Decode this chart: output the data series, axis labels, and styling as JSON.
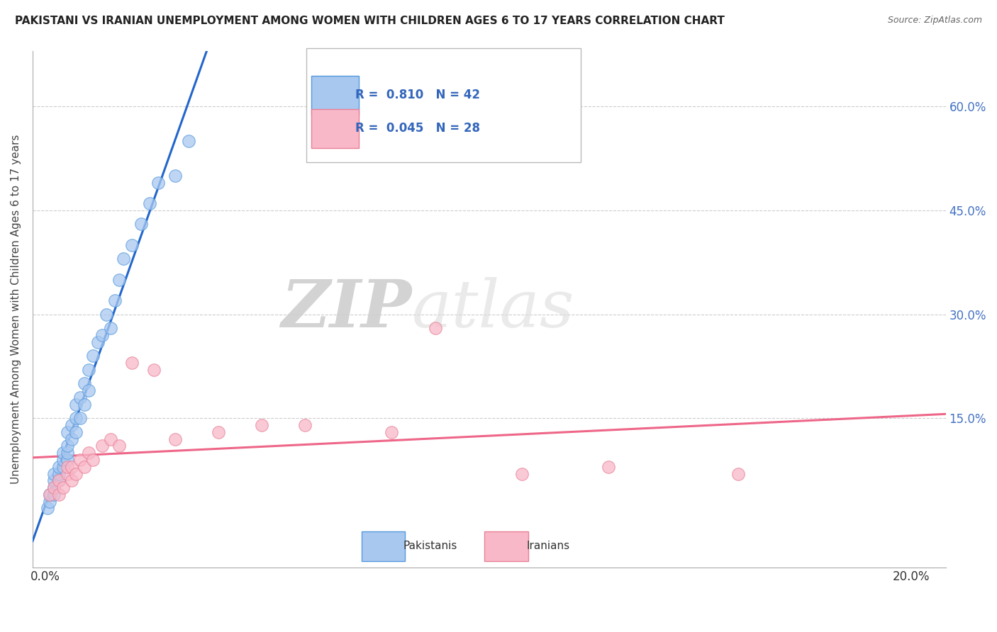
{
  "title": "PAKISTANI VS IRANIAN UNEMPLOYMENT AMONG WOMEN WITH CHILDREN AGES 6 TO 17 YEARS CORRELATION CHART",
  "source": "Source: ZipAtlas.com",
  "ylabel": "Unemployment Among Women with Children Ages 6 to 17 years",
  "ytick_values": [
    0.0,
    0.15,
    0.3,
    0.45,
    0.6
  ],
  "ytick_labels": [
    "",
    "15.0%",
    "30.0%",
    "45.0%",
    "60.0%"
  ],
  "xtick_values": [
    0.0,
    0.2
  ],
  "xtick_labels": [
    "0.0%",
    "20.0%"
  ],
  "xlim": [
    -0.003,
    0.208
  ],
  "ylim": [
    -0.065,
    0.68
  ],
  "legend_r1": "R =  0.810",
  "legend_n1": "N = 42",
  "legend_r2": "R =  0.045",
  "legend_n2": "N = 28",
  "color_pakistani_fill": "#A8C8F0",
  "color_pakistani_edge": "#5599DD",
  "color_iranian_fill": "#F8B8C8",
  "color_iranian_edge": "#E88098",
  "color_line_pakistani": "#2266CC",
  "color_line_iranian": "#EE6688",
  "watermark_zip": "ZIP",
  "watermark_atlas": "atlas",
  "pakistani_x": [
    0.0005,
    0.001,
    0.001,
    0.002,
    0.002,
    0.002,
    0.002,
    0.003,
    0.003,
    0.003,
    0.004,
    0.004,
    0.004,
    0.005,
    0.005,
    0.005,
    0.005,
    0.006,
    0.006,
    0.007,
    0.007,
    0.007,
    0.008,
    0.008,
    0.009,
    0.009,
    0.01,
    0.01,
    0.011,
    0.012,
    0.013,
    0.014,
    0.015,
    0.016,
    0.017,
    0.018,
    0.02,
    0.022,
    0.024,
    0.026,
    0.03,
    0.033
  ],
  "pakistani_y": [
    0.02,
    0.03,
    0.04,
    0.04,
    0.05,
    0.06,
    0.07,
    0.06,
    0.07,
    0.08,
    0.08,
    0.09,
    0.1,
    0.09,
    0.1,
    0.11,
    0.13,
    0.12,
    0.14,
    0.13,
    0.15,
    0.17,
    0.15,
    0.18,
    0.17,
    0.2,
    0.19,
    0.22,
    0.24,
    0.26,
    0.27,
    0.3,
    0.28,
    0.32,
    0.35,
    0.38,
    0.4,
    0.43,
    0.46,
    0.49,
    0.5,
    0.55
  ],
  "iranian_x": [
    0.001,
    0.002,
    0.003,
    0.003,
    0.004,
    0.005,
    0.005,
    0.006,
    0.006,
    0.007,
    0.008,
    0.009,
    0.01,
    0.011,
    0.013,
    0.015,
    0.017,
    0.02,
    0.025,
    0.03,
    0.04,
    0.05,
    0.06,
    0.08,
    0.09,
    0.11,
    0.13,
    0.16
  ],
  "iranian_y": [
    0.04,
    0.05,
    0.04,
    0.06,
    0.05,
    0.07,
    0.08,
    0.06,
    0.08,
    0.07,
    0.09,
    0.08,
    0.1,
    0.09,
    0.11,
    0.12,
    0.11,
    0.23,
    0.22,
    0.12,
    0.13,
    0.14,
    0.14,
    0.13,
    0.28,
    0.07,
    0.08,
    0.07
  ]
}
